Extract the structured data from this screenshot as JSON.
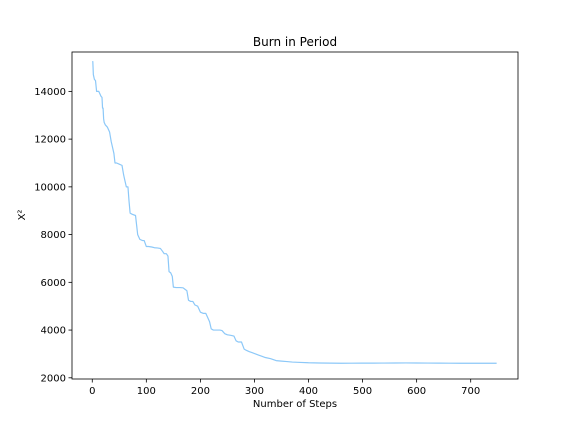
{
  "chart_data": {
    "type": "line",
    "title": "Burn in Period",
    "xlabel": "Number of Steps",
    "ylabel": "X²",
    "xlim": [
      -37.5,
      787.5
    ],
    "ylim": [
      1950,
      15650
    ],
    "xticks": [
      0,
      100,
      200,
      300,
      400,
      500,
      600,
      700
    ],
    "yticks": [
      2000,
      4000,
      6000,
      8000,
      10000,
      12000,
      14000
    ],
    "grid": false,
    "series": [
      {
        "color": "#8cc8f8",
        "points": [
          [
            0,
            15250
          ],
          [
            1,
            15250
          ],
          [
            2,
            14700
          ],
          [
            4,
            14500
          ],
          [
            6,
            14450
          ],
          [
            8,
            14000
          ],
          [
            12,
            14000
          ],
          [
            14,
            13900
          ],
          [
            16,
            13800
          ],
          [
            18,
            13750
          ],
          [
            19,
            13300
          ],
          [
            20,
            13300
          ],
          [
            21,
            12850
          ],
          [
            22,
            12700
          ],
          [
            24,
            12600
          ],
          [
            28,
            12500
          ],
          [
            32,
            12300
          ],
          [
            35,
            11900
          ],
          [
            38,
            11600
          ],
          [
            40,
            11400
          ],
          [
            42,
            11000
          ],
          [
            45,
            11000
          ],
          [
            50,
            10950
          ],
          [
            55,
            10900
          ],
          [
            58,
            10500
          ],
          [
            60,
            10300
          ],
          [
            63,
            10000
          ],
          [
            66,
            10000
          ],
          [
            68,
            9400
          ],
          [
            70,
            8900
          ],
          [
            74,
            8850
          ],
          [
            80,
            8800
          ],
          [
            84,
            8000
          ],
          [
            88,
            7800
          ],
          [
            93,
            7750
          ],
          [
            96,
            7750
          ],
          [
            100,
            7500
          ],
          [
            104,
            7500
          ],
          [
            110,
            7480
          ],
          [
            115,
            7450
          ],
          [
            120,
            7440
          ],
          [
            126,
            7420
          ],
          [
            130,
            7300
          ],
          [
            133,
            7200
          ],
          [
            137,
            7200
          ],
          [
            140,
            7100
          ],
          [
            142,
            6450
          ],
          [
            145,
            6400
          ],
          [
            148,
            6250
          ],
          [
            150,
            5800
          ],
          [
            155,
            5780
          ],
          [
            162,
            5780
          ],
          [
            168,
            5770
          ],
          [
            172,
            5700
          ],
          [
            175,
            5650
          ],
          [
            178,
            5250
          ],
          [
            182,
            5200
          ],
          [
            186,
            5200
          ],
          [
            190,
            5050
          ],
          [
            195,
            5000
          ],
          [
            200,
            4750
          ],
          [
            205,
            4700
          ],
          [
            210,
            4700
          ],
          [
            214,
            4500
          ],
          [
            217,
            4350
          ],
          [
            220,
            4050
          ],
          [
            224,
            4000
          ],
          [
            228,
            4000
          ],
          [
            236,
            4000
          ],
          [
            240,
            3980
          ],
          [
            245,
            3850
          ],
          [
            250,
            3800
          ],
          [
            256,
            3780
          ],
          [
            262,
            3750
          ],
          [
            266,
            3550
          ],
          [
            270,
            3500
          ],
          [
            276,
            3500
          ],
          [
            281,
            3200
          ],
          [
            285,
            3150
          ],
          [
            290,
            3100
          ],
          [
            296,
            3050
          ],
          [
            302,
            3000
          ],
          [
            308,
            2950
          ],
          [
            314,
            2900
          ],
          [
            320,
            2850
          ],
          [
            330,
            2800
          ],
          [
            340,
            2720
          ],
          [
            350,
            2700
          ],
          [
            360,
            2680
          ],
          [
            370,
            2660
          ],
          [
            380,
            2650
          ],
          [
            400,
            2630
          ],
          [
            420,
            2620
          ],
          [
            440,
            2615
          ],
          [
            460,
            2610
          ],
          [
            480,
            2612
          ],
          [
            500,
            2615
          ],
          [
            520,
            2615
          ],
          [
            540,
            2618
          ],
          [
            560,
            2620
          ],
          [
            580,
            2622
          ],
          [
            600,
            2620
          ],
          [
            620,
            2618
          ],
          [
            640,
            2615
          ],
          [
            660,
            2612
          ],
          [
            680,
            2610
          ],
          [
            700,
            2610
          ],
          [
            720,
            2610
          ],
          [
            748,
            2610
          ]
        ]
      }
    ]
  }
}
